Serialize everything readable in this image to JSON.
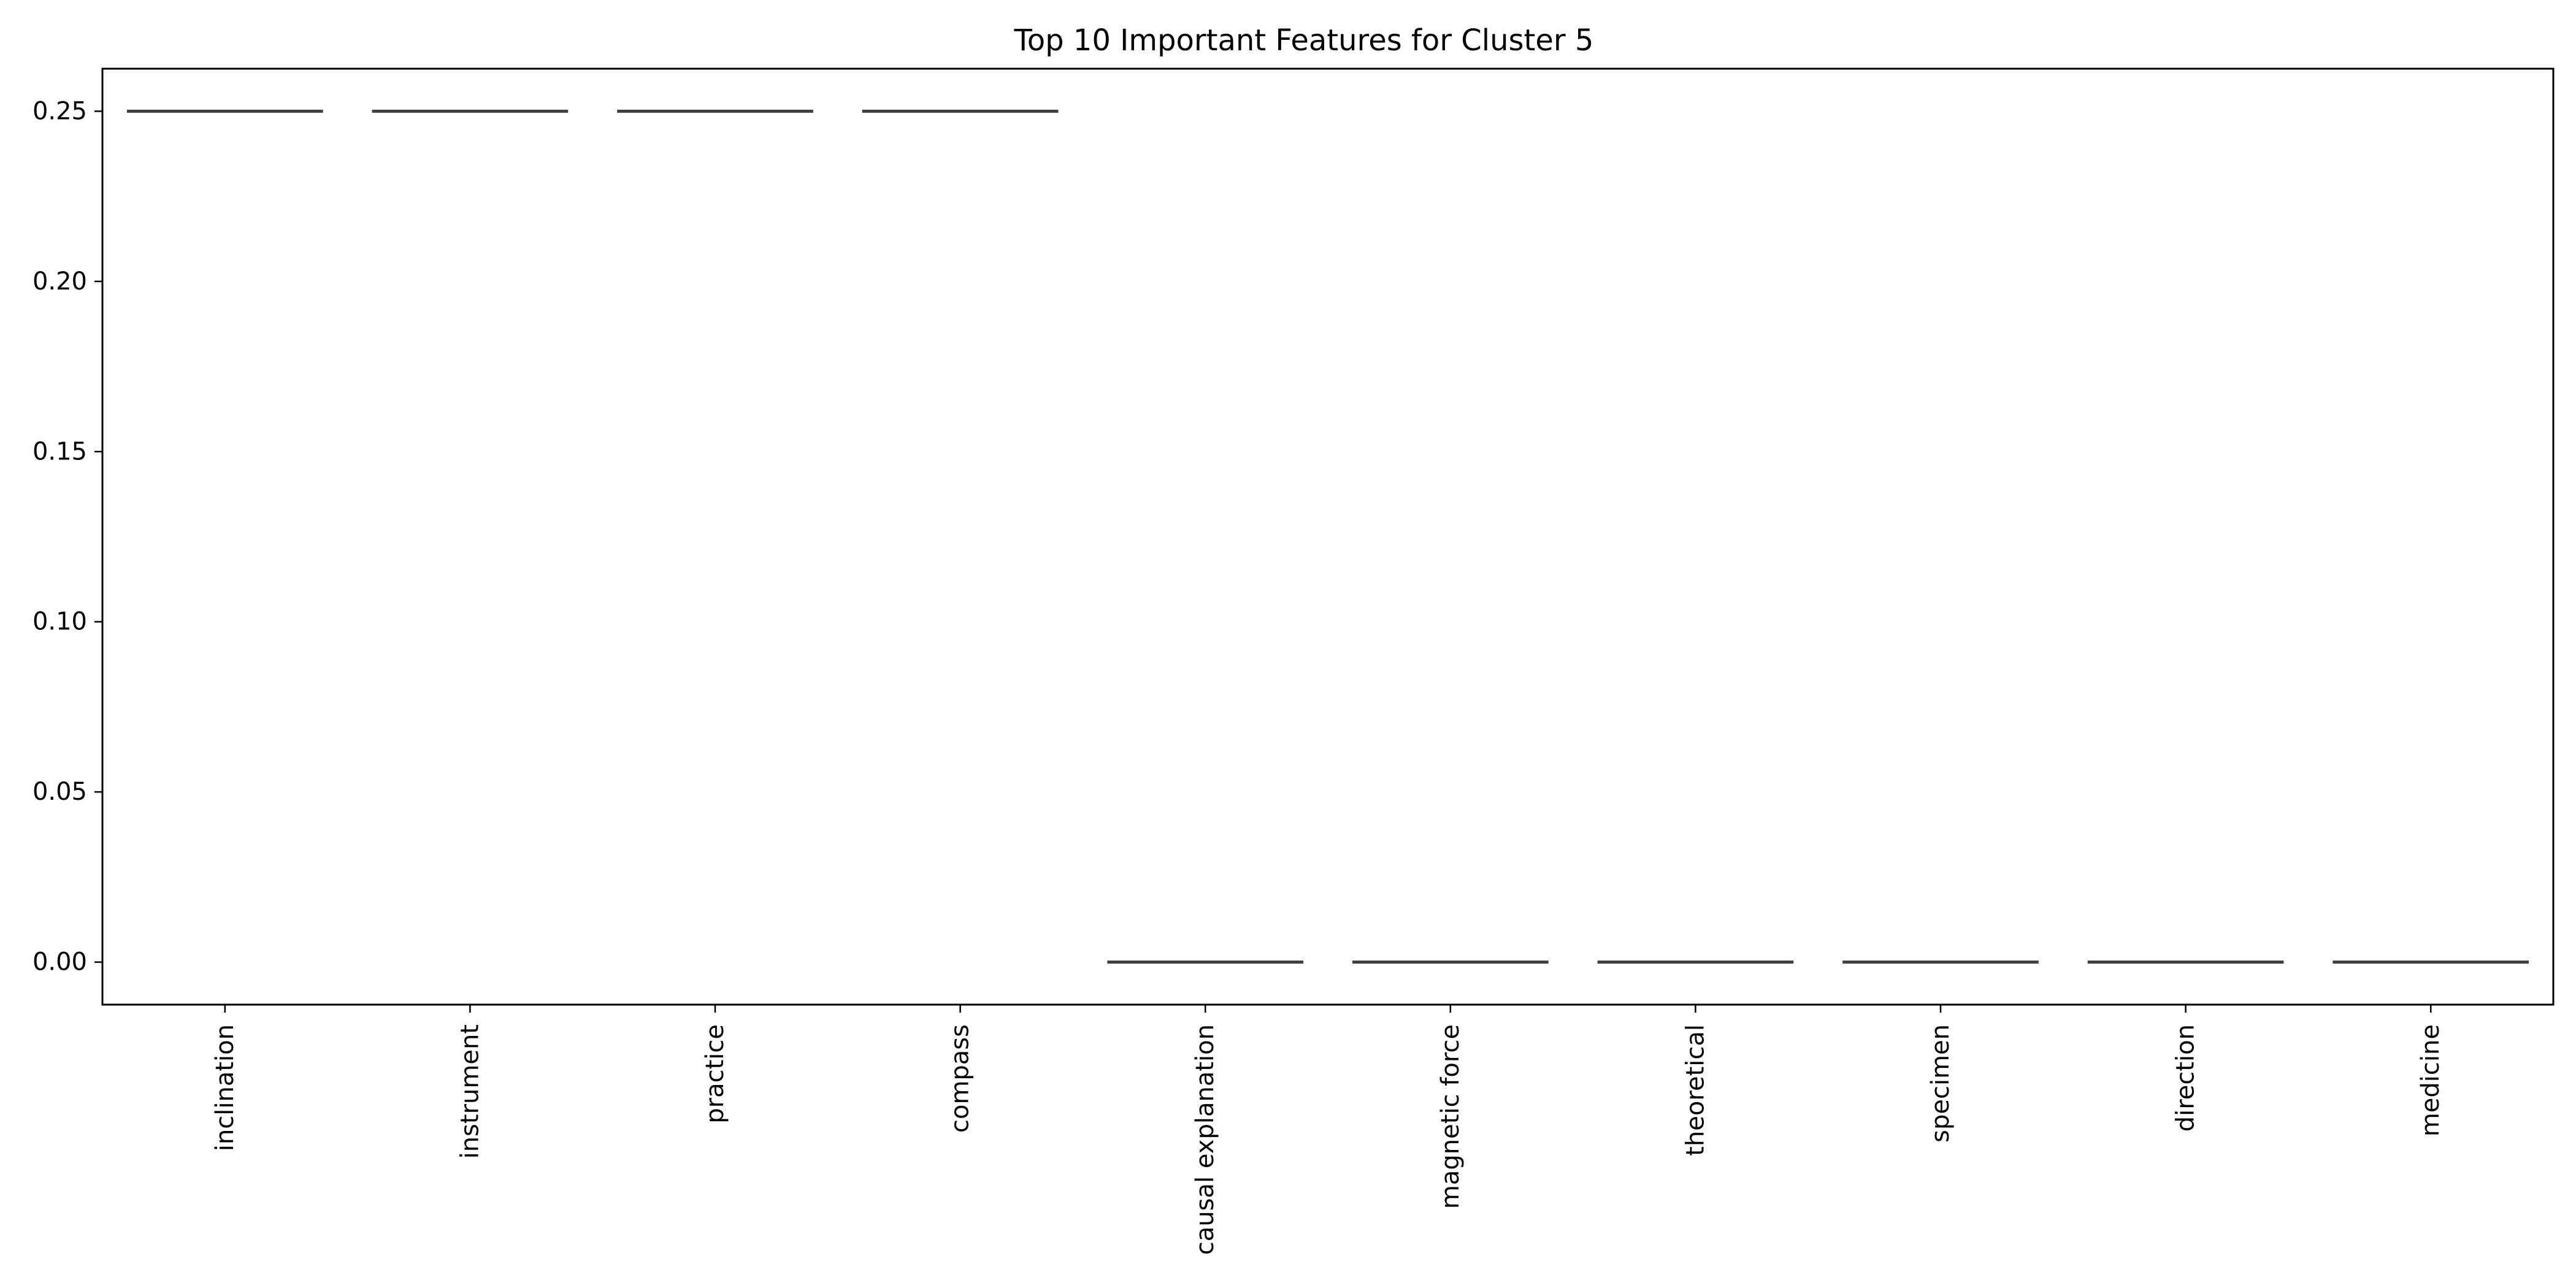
{
  "chart_data": {
    "type": "box",
    "title": "Top 10 Important Features for Cluster 5",
    "xlabel": "",
    "ylabel": "",
    "categories": [
      "inclination",
      "instrument",
      "practice",
      "compass",
      "causal explanation",
      "magnetic force",
      "theoretical",
      "specimen",
      "direction",
      "medicine"
    ],
    "values": [
      0.25,
      0.25,
      0.25,
      0.25,
      0.0,
      0.0,
      0.0,
      0.0,
      0.0,
      0.0
    ],
    "ylim": [
      -0.0125,
      0.2625
    ],
    "yticks": [
      0.0,
      0.05,
      0.1,
      0.15,
      0.2,
      0.25
    ],
    "ytick_labels": [
      "0.00",
      "0.05",
      "0.10",
      "0.15",
      "0.20",
      "0.25"
    ],
    "grid": false,
    "legend": "none",
    "line_color": "#3f3f3f"
  }
}
